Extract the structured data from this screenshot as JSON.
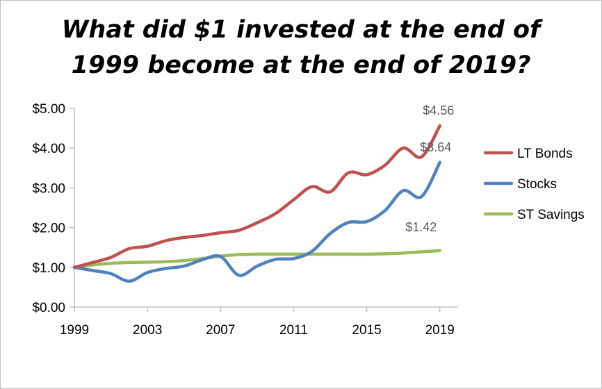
{
  "chart_data": {
    "type": "line",
    "title": "What did $1 invested at the end of\n1999 become at the end of 2019?",
    "xlabel": "",
    "ylabel": "",
    "x": [
      1999,
      2000,
      2001,
      2002,
      2003,
      2004,
      2005,
      2006,
      2007,
      2008,
      2009,
      2010,
      2011,
      2012,
      2013,
      2014,
      2015,
      2016,
      2017,
      2018,
      2019
    ],
    "x_ticks": [
      "1999",
      "2003",
      "2007",
      "2011",
      "2015",
      "2019"
    ],
    "x_tick_values": [
      1999,
      2003,
      2007,
      2011,
      2015,
      2019
    ],
    "xlim": [
      1999,
      2020
    ],
    "ylim": [
      0,
      5
    ],
    "y_ticks": [
      "$0.00",
      "$1.00",
      "$2.00",
      "$3.00",
      "$4.00",
      "$5.00"
    ],
    "y_tick_values": [
      0,
      1,
      2,
      3,
      4,
      5
    ],
    "grid": false,
    "legend_position": "right",
    "series": [
      {
        "name": "LT Bonds",
        "color": "#c0504d",
        "values": [
          1.0,
          1.12,
          1.25,
          1.47,
          1.53,
          1.67,
          1.75,
          1.8,
          1.87,
          1.93,
          2.12,
          2.35,
          2.7,
          3.03,
          2.9,
          3.38,
          3.33,
          3.57,
          4.0,
          3.78,
          4.56
        ],
        "end_label": "$4.56"
      },
      {
        "name": "Stocks",
        "color": "#4f81bd",
        "values": [
          1.0,
          0.92,
          0.84,
          0.65,
          0.87,
          0.97,
          1.03,
          1.19,
          1.27,
          0.8,
          1.03,
          1.2,
          1.22,
          1.4,
          1.85,
          2.13,
          2.15,
          2.43,
          2.93,
          2.78,
          3.64
        ],
        "end_label": "$3.64"
      },
      {
        "name": "ST Savings",
        "color": "#9bbb59",
        "values": [
          1.0,
          1.06,
          1.1,
          1.12,
          1.13,
          1.14,
          1.17,
          1.22,
          1.28,
          1.32,
          1.33,
          1.33,
          1.33,
          1.33,
          1.33,
          1.33,
          1.33,
          1.34,
          1.36,
          1.39,
          1.42
        ],
        "end_label": "$1.42"
      }
    ]
  }
}
